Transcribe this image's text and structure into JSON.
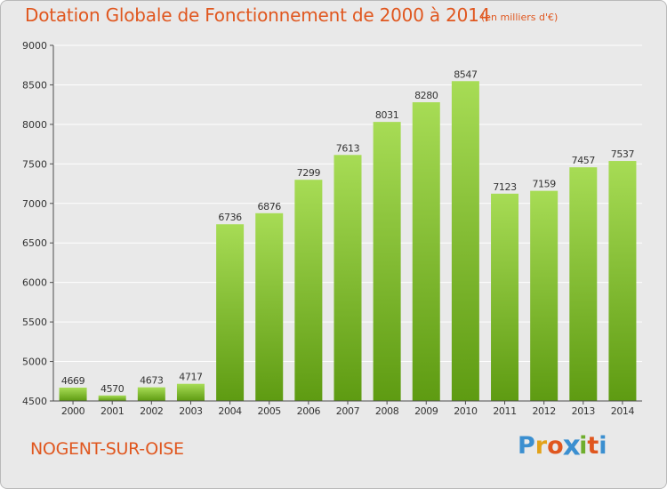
{
  "header": {
    "title": "Dotation Globale de Fonctionnement de 2000 à 2014",
    "subtitle": "(en milliers d'€)"
  },
  "footer": {
    "commune": "NOGENT-SUR-OISE",
    "logo_letters": [
      "P",
      "r",
      "o",
      "x",
      "i",
      "t",
      "i"
    ],
    "logo_colors": [
      "#3b8fd0",
      "#e2a219",
      "#e0571f",
      "#3b8fd0",
      "#6fae2d",
      "#e0571f",
      "#3b8fd0"
    ]
  },
  "colors": {
    "bar_light": "#a7dc55",
    "bar_dark": "#5e9b12",
    "grid": "#ffffff",
    "axis": "#4d4d4d",
    "title": "#e0571f"
  },
  "chart_data": {
    "type": "bar",
    "title": "Dotation Globale de Fonctionnement de 2000 à 2014",
    "categories": [
      "2000",
      "2001",
      "2002",
      "2003",
      "2004",
      "2005",
      "2006",
      "2007",
      "2008",
      "2009",
      "2010",
      "2011",
      "2012",
      "2013",
      "2014"
    ],
    "values": [
      4669,
      4570,
      4673,
      4717,
      6736,
      6876,
      7299,
      7613,
      8031,
      8280,
      8547,
      7123,
      7159,
      7457,
      7537
    ],
    "ylim": [
      4500,
      9000
    ],
    "yticks": [
      "4500",
      "5000",
      "5500",
      "6000",
      "6500",
      "7000",
      "7500",
      "8000",
      "8500",
      "9000"
    ],
    "grid": true,
    "data_labels": true
  }
}
